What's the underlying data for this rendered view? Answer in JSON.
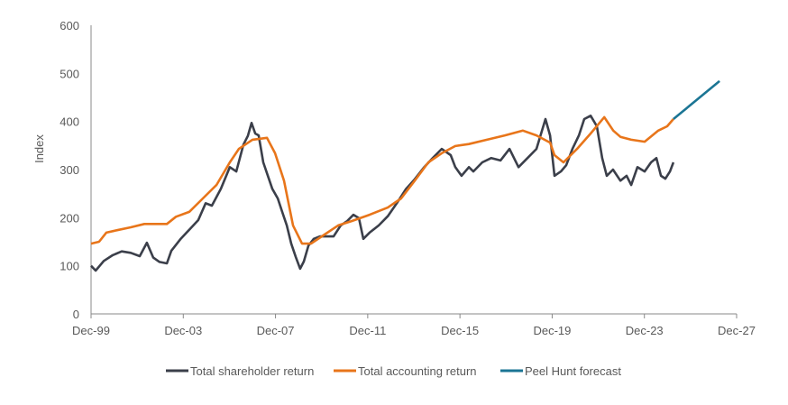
{
  "chart_data": {
    "type": "line",
    "title": "",
    "xlabel": "",
    "ylabel": "Index",
    "x_unit": "decimal year",
    "xlim": [
      1999.92,
      2027.92
    ],
    "ylim": [
      0,
      600
    ],
    "yticks": [
      0,
      100,
      200,
      300,
      400,
      500,
      600
    ],
    "xticks": [
      {
        "value": 1999.92,
        "label": "Dec-99"
      },
      {
        "value": 2003.92,
        "label": "Dec-03"
      },
      {
        "value": 2007.92,
        "label": "Dec-07"
      },
      {
        "value": 2011.92,
        "label": "Dec-11"
      },
      {
        "value": 2015.92,
        "label": "Dec-15"
      },
      {
        "value": 2019.92,
        "label": "Dec-19"
      },
      {
        "value": 2023.92,
        "label": "Dec-23"
      },
      {
        "value": 2027.92,
        "label": "Dec-27"
      }
    ],
    "grid": false,
    "legend_position": "bottom",
    "series": [
      {
        "name": "Total shareholder return",
        "color": "#3b3f4a",
        "points": [
          [
            1999.92,
            100
          ],
          [
            2000.12,
            90
          ],
          [
            2000.47,
            110
          ],
          [
            2000.86,
            122
          ],
          [
            2001.25,
            130
          ],
          [
            2001.64,
            127
          ],
          [
            2002.03,
            120
          ],
          [
            2002.34,
            148
          ],
          [
            2002.62,
            117
          ],
          [
            2002.89,
            108
          ],
          [
            2003.21,
            105
          ],
          [
            2003.4,
            131
          ],
          [
            2003.79,
            155
          ],
          [
            2004.18,
            175
          ],
          [
            2004.57,
            195
          ],
          [
            2004.89,
            230
          ],
          [
            2005.16,
            225
          ],
          [
            2005.55,
            260
          ],
          [
            2005.94,
            305
          ],
          [
            2006.22,
            296
          ],
          [
            2006.53,
            352
          ],
          [
            2006.72,
            370
          ],
          [
            2006.88,
            397
          ],
          [
            2007.04,
            375
          ],
          [
            2007.19,
            371
          ],
          [
            2007.39,
            315
          ],
          [
            2007.59,
            287
          ],
          [
            2007.78,
            260
          ],
          [
            2008.02,
            240
          ],
          [
            2008.21,
            212
          ],
          [
            2008.41,
            184
          ],
          [
            2008.6,
            146
          ],
          [
            2008.8,
            118
          ],
          [
            2008.99,
            94
          ],
          [
            2009.15,
            109
          ],
          [
            2009.35,
            142
          ],
          [
            2009.58,
            156
          ],
          [
            2009.85,
            161
          ],
          [
            2010.13,
            161
          ],
          [
            2010.44,
            161
          ],
          [
            2010.75,
            184
          ],
          [
            2011.03,
            193
          ],
          [
            2011.3,
            206
          ],
          [
            2011.54,
            199
          ],
          [
            2011.73,
            156
          ],
          [
            2012.0,
            169
          ],
          [
            2012.4,
            184
          ],
          [
            2012.79,
            203
          ],
          [
            2013.18,
            230
          ],
          [
            2013.57,
            259
          ],
          [
            2013.96,
            280
          ],
          [
            2014.35,
            304
          ],
          [
            2014.74,
            324
          ],
          [
            2015.13,
            343
          ],
          [
            2015.52,
            330
          ],
          [
            2015.72,
            305
          ],
          [
            2015.99,
            287
          ],
          [
            2016.31,
            305
          ],
          [
            2016.5,
            296
          ],
          [
            2016.89,
            315
          ],
          [
            2017.28,
            324
          ],
          [
            2017.68,
            319
          ],
          [
            2018.07,
            343
          ],
          [
            2018.46,
            305
          ],
          [
            2018.85,
            324
          ],
          [
            2019.24,
            343
          ],
          [
            2019.63,
            405
          ],
          [
            2019.83,
            371
          ],
          [
            2020.02,
            287
          ],
          [
            2020.3,
            296
          ],
          [
            2020.53,
            309
          ],
          [
            2020.8,
            343
          ],
          [
            2021.08,
            371
          ],
          [
            2021.31,
            405
          ],
          [
            2021.59,
            412
          ],
          [
            2021.86,
            390
          ],
          [
            2022.09,
            324
          ],
          [
            2022.29,
            287
          ],
          [
            2022.56,
            300
          ],
          [
            2022.88,
            277
          ],
          [
            2023.15,
            287
          ],
          [
            2023.35,
            268
          ],
          [
            2023.62,
            305
          ],
          [
            2023.93,
            296
          ],
          [
            2024.21,
            315
          ],
          [
            2024.44,
            324
          ],
          [
            2024.64,
            287
          ],
          [
            2024.83,
            281
          ],
          [
            2025.03,
            296
          ],
          [
            2025.18,
            315
          ]
        ]
      },
      {
        "name": "Total accounting return",
        "color": "#e8751a",
        "points": [
          [
            1999.92,
            146
          ],
          [
            2000.27,
            150
          ],
          [
            2000.58,
            169
          ],
          [
            2001.05,
            174
          ],
          [
            2001.64,
            180
          ],
          [
            2002.23,
            187
          ],
          [
            2003.21,
            187
          ],
          [
            2003.6,
            202
          ],
          [
            2004.18,
            212
          ],
          [
            2004.77,
            240
          ],
          [
            2005.36,
            268
          ],
          [
            2005.94,
            315
          ],
          [
            2006.33,
            343
          ],
          [
            2006.92,
            362
          ],
          [
            2007.55,
            366
          ],
          [
            2007.9,
            334
          ],
          [
            2008.29,
            277
          ],
          [
            2008.68,
            184
          ],
          [
            2009.07,
            146
          ],
          [
            2009.46,
            146
          ],
          [
            2010.05,
            165
          ],
          [
            2010.64,
            184
          ],
          [
            2011.22,
            193
          ],
          [
            2012.0,
            206
          ],
          [
            2012.79,
            221
          ],
          [
            2013.37,
            240
          ],
          [
            2013.96,
            277
          ],
          [
            2014.55,
            315
          ],
          [
            2015.13,
            334
          ],
          [
            2015.72,
            349
          ],
          [
            2016.31,
            353
          ],
          [
            2017.09,
            362
          ],
          [
            2017.87,
            371
          ],
          [
            2018.65,
            381
          ],
          [
            2019.24,
            371
          ],
          [
            2019.83,
            356
          ],
          [
            2020.02,
            330
          ],
          [
            2020.41,
            315
          ],
          [
            2021.0,
            343
          ],
          [
            2021.59,
            375
          ],
          [
            2022.18,
            409
          ],
          [
            2022.57,
            381
          ],
          [
            2022.88,
            368
          ],
          [
            2023.35,
            362
          ],
          [
            2023.93,
            358
          ],
          [
            2024.52,
            381
          ],
          [
            2024.91,
            390
          ],
          [
            2025.18,
            405
          ]
        ]
      },
      {
        "name": "Peel Hunt forecast",
        "color": "#1b7594",
        "points": [
          [
            2025.18,
            405
          ],
          [
            2027.18,
            484
          ]
        ]
      }
    ]
  }
}
